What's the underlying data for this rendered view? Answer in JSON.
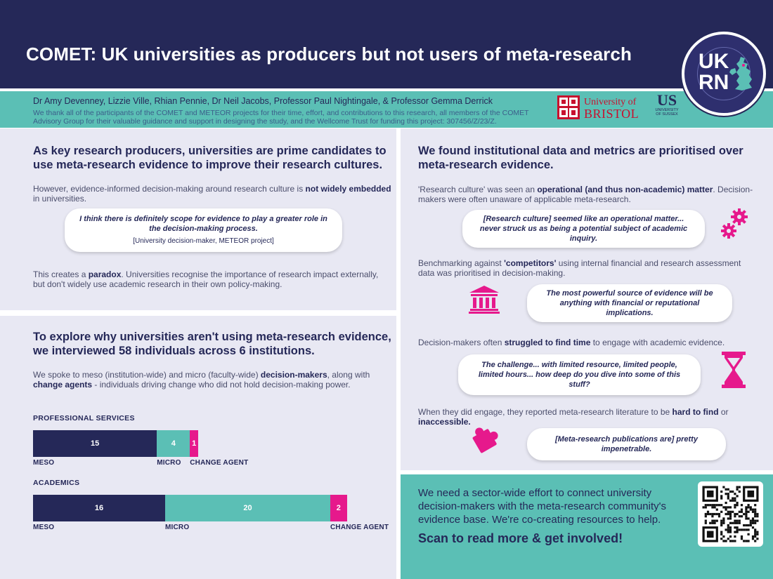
{
  "header": {
    "title": "COMET: UK universities as producers but not users of meta-research"
  },
  "logo": {
    "line1": "UK",
    "line2": "RN"
  },
  "authors_bar": {
    "authors": "Dr Amy Devenney, Lizzie Ville, Rhian Pennie, Dr Neil Jacobs, Professor Paul Nightingale, & Professor Gemma Derrick",
    "thanks": "We thank all of the participants of the COMET and METEOR projects for their time, effort, and contributions to this research, all members of the COMET Advisory Group for their valuable guidance and support in designing the study, and the Wellcome Trust for funding this project: 307456/Z/23/Z.",
    "bristol_line1": "University of",
    "bristol_line2": "BRISTOL",
    "sussex_big": "US",
    "sussex_small1": "UNIVERSITY",
    "sussex_small2": "OF SUSSEX"
  },
  "panel1": {
    "heading": "As key research producers, universities are prime candidates to use meta-research evidence to improve their research cultures.",
    "para1_a": "However, evidence-informed decision-making around research culture is ",
    "para1_b": "not widely embedded",
    "para1_c": " in universities.",
    "quote": "I think there is definitely scope for evidence to play a greater role in the decision-making process.",
    "quote_source": "[University decision-maker, METEOR project]",
    "para2_a": "This creates a ",
    "para2_b": "paradox",
    "para2_c": ". Universities recognise the importance of research impact externally, but don't widely use academic research in their own policy-making."
  },
  "panel2": {
    "heading": "To explore why universities aren't using meta-research evidence, we interviewed 58 individuals across 6 institutions.",
    "para_a": "We spoke to meso (institution-wide) and micro (faculty-wide) ",
    "para_b": "decision-makers",
    "para_c": ", along with ",
    "para_d": "change agents",
    "para_e": " - individuals driving change who did not hold decision-making power."
  },
  "chart_data": [
    {
      "type": "bar",
      "title": "PROFESSIONAL SERVICES",
      "categories": [
        "MESO",
        "MICRO",
        "CHANGE AGENT"
      ],
      "values": [
        15,
        4,
        1
      ]
    },
    {
      "type": "bar",
      "title": "ACADEMICS",
      "categories": [
        "MESO",
        "MICRO",
        "CHANGE AGENT"
      ],
      "values": [
        16,
        20,
        2
      ]
    }
  ],
  "colors": {
    "meso": "#252858",
    "micro": "#5bbfb5",
    "change_agent": "#e6198c"
  },
  "panel3": {
    "heading": "We found institutional data and metrics are prioritised over meta-research evidence.",
    "f1_a": "'Research culture' was seen an ",
    "f1_b": "operational (and thus non-academic) matter",
    "f1_c": ". Decision-makers were often unaware of applicable meta-research.",
    "q1": "[Research culture] seemed like an operational matter... never struck us as being a potential subject of academic inquiry.",
    "f2_a": "Benchmarking against ",
    "f2_b": "'competitors'",
    "f2_c": " using internal financial and research assessment data was prioritised in decision-making.",
    "q2": "The most powerful source of evidence will be anything with financial or reputational implications.",
    "f3_a": "Decision-makers often ",
    "f3_b": "struggled to find time",
    "f3_c": " to engage with academic evidence.",
    "q3": "The challenge... with limited resource, limited people, limited hours... how deep do you dive into some of this stuff?",
    "f4_a": "When they did engage, they reported meta-research literature to be ",
    "f4_b": "hard to find",
    "f4_c": " or ",
    "f4_d": "inaccessible.",
    "q4": "[Meta-research publications are] pretty impenetrable."
  },
  "panel4": {
    "call": "We need a sector-wide effort to connect university decision-makers with the meta-research community's evidence base.  We're co-creating resources to help.",
    "cta": "Scan to read more & get involved!"
  },
  "icons": [
    "gears-icon",
    "institution-icon",
    "hourglass-icon",
    "puzzle-icon",
    "qr-code-icon",
    "uk-map-icon"
  ]
}
